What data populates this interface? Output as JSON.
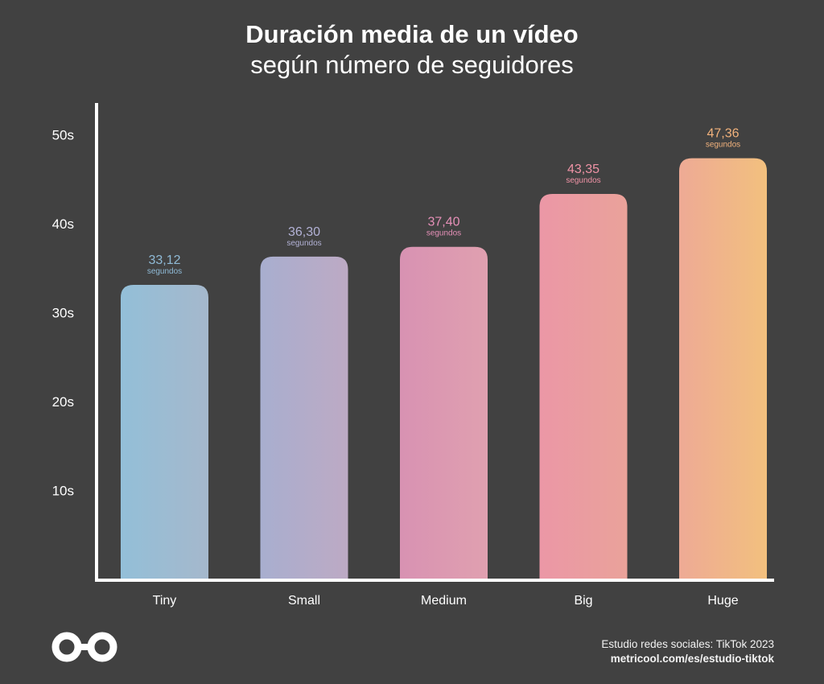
{
  "title": "Duración media de un vídeo",
  "subtitle": "según número de seguidores",
  "chart_data": {
    "type": "bar",
    "categories": [
      "Tiny",
      "Small",
      "Medium",
      "Big",
      "Huge"
    ],
    "values": [
      33.12,
      36.3,
      37.4,
      43.35,
      47.36
    ],
    "value_labels": [
      "33,12",
      "36,30",
      "37,40",
      "43,35",
      "47,36"
    ],
    "value_unit": "segundos",
    "y_ticks": [
      10,
      20,
      30,
      40,
      50
    ],
    "y_tick_labels": [
      "10s",
      "20s",
      "30s",
      "40s",
      "50s"
    ],
    "ylim": [
      0,
      50
    ],
    "grid": false,
    "bar_colors": [
      [
        "#93bfd8",
        "#a5b8cc"
      ],
      [
        "#a8aecf",
        "#bdaac4"
      ],
      [
        "#d892b2",
        "#e0a0b0"
      ],
      [
        "#eb97a6",
        "#eaa29a"
      ],
      [
        "#eeaa95",
        "#f2c07e"
      ]
    ],
    "label_colors": [
      "#8fbad6",
      "#b3b2d6",
      "#e690b8",
      "#f093a6",
      "#f2b27c"
    ]
  },
  "footer": {
    "source_line1": "Estudio redes sociales: TikTok 2023",
    "source_line2": "metricool.com/es/estudio-tiktok",
    "logo_icon": "metricool-infinity-logo"
  }
}
